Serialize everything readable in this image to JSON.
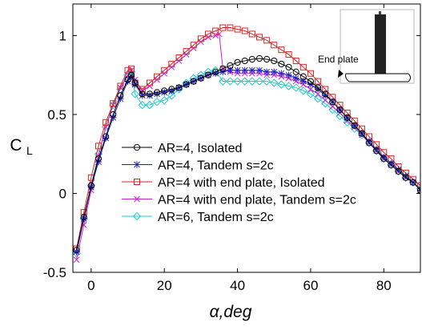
{
  "chart_data": {
    "type": "line",
    "xlabel": "α,deg",
    "ylabel": "C",
    "ylabel_subscript": "L",
    "xlim": [
      -5,
      90
    ],
    "ylim": [
      -0.5,
      1.2
    ],
    "xticks": [
      0,
      20,
      40,
      60,
      80
    ],
    "yticks": [
      -0.5,
      0,
      0.5,
      1
    ],
    "xtick_labels": [
      "0",
      "20",
      "40",
      "60",
      "80"
    ],
    "ytick_labels": [
      "-0.5",
      "0",
      "0.5",
      "1"
    ],
    "grid": false,
    "legend_position": "lower-left",
    "inset_label": "End plate",
    "series": [
      {
        "name": "AR=4, Isolated",
        "color": "#000000",
        "marker": "circle",
        "x": [
          -4,
          -2,
          0,
          2,
          4,
          6,
          8,
          10,
          11,
          12,
          14,
          16,
          18,
          20,
          22,
          24,
          26,
          28,
          30,
          32,
          34,
          36,
          38,
          40,
          42,
          44,
          46,
          48,
          50,
          52,
          54,
          56,
          58,
          60,
          62,
          64,
          66,
          68,
          70,
          72,
          74,
          76,
          78,
          80,
          82,
          84,
          86,
          88,
          90
        ],
        "y": [
          -0.36,
          -0.15,
          0.05,
          0.22,
          0.36,
          0.5,
          0.62,
          0.72,
          0.75,
          0.7,
          0.63,
          0.63,
          0.64,
          0.65,
          0.66,
          0.67,
          0.69,
          0.71,
          0.73,
          0.75,
          0.77,
          0.79,
          0.81,
          0.83,
          0.84,
          0.85,
          0.855,
          0.85,
          0.84,
          0.82,
          0.8,
          0.77,
          0.74,
          0.71,
          0.67,
          0.63,
          0.58,
          0.53,
          0.48,
          0.43,
          0.38,
          0.32,
          0.27,
          0.22,
          0.18,
          0.14,
          0.1,
          0.07,
          0.02
        ]
      },
      {
        "name": "AR=4, Tandem s=2c",
        "color": "#2222cc",
        "marker": "star",
        "x": [
          -4,
          -2,
          0,
          2,
          4,
          6,
          8,
          10,
          11,
          12,
          14,
          16,
          18,
          20,
          22,
          24,
          26,
          28,
          30,
          32,
          34,
          36,
          38,
          40,
          42,
          44,
          46,
          48,
          50,
          52,
          54,
          56,
          58,
          60,
          62,
          64,
          66,
          68,
          70,
          72,
          74,
          76,
          78,
          80,
          82,
          84,
          86,
          88,
          90
        ],
        "y": [
          -0.37,
          -0.16,
          0.04,
          0.2,
          0.35,
          0.48,
          0.6,
          0.71,
          0.74,
          0.69,
          0.62,
          0.62,
          0.63,
          0.64,
          0.65,
          0.67,
          0.69,
          0.71,
          0.73,
          0.75,
          0.76,
          0.77,
          0.78,
          0.78,
          0.78,
          0.78,
          0.78,
          0.77,
          0.77,
          0.76,
          0.75,
          0.73,
          0.71,
          0.69,
          0.66,
          0.62,
          0.58,
          0.53,
          0.48,
          0.43,
          0.38,
          0.33,
          0.28,
          0.23,
          0.19,
          0.15,
          0.11,
          0.07,
          0.02
        ]
      },
      {
        "name": "AR=4 with end plate, Isolated",
        "color": "#dd2222",
        "marker": "square",
        "x": [
          -4,
          -2,
          0,
          2,
          4,
          6,
          8,
          10,
          11,
          12,
          14,
          16,
          18,
          20,
          22,
          24,
          26,
          28,
          30,
          32,
          34,
          36,
          38,
          40,
          42,
          44,
          46,
          48,
          50,
          52,
          54,
          56,
          58,
          60,
          62,
          64,
          66,
          68,
          70,
          72,
          74,
          76,
          78,
          80,
          82,
          84,
          86,
          88,
          90
        ],
        "y": [
          -0.35,
          -0.12,
          0.1,
          0.3,
          0.45,
          0.57,
          0.68,
          0.78,
          0.79,
          0.7,
          0.66,
          0.7,
          0.74,
          0.78,
          0.82,
          0.86,
          0.9,
          0.94,
          0.98,
          1.01,
          1.03,
          1.05,
          1.05,
          1.04,
          1.03,
          1.01,
          0.99,
          0.97,
          0.94,
          0.91,
          0.88,
          0.84,
          0.8,
          0.76,
          0.71,
          0.66,
          0.61,
          0.56,
          0.51,
          0.46,
          0.41,
          0.36,
          0.31,
          0.26,
          0.22,
          0.17,
          0.13,
          0.09,
          0.05
        ]
      },
      {
        "name": "AR=4 with end plate, Tandem s=2c",
        "color": "#cc22cc",
        "marker": "x",
        "x": [
          -4,
          -2,
          0,
          2,
          4,
          6,
          8,
          10,
          11,
          12,
          14,
          16,
          18,
          20,
          22,
          24,
          26,
          28,
          30,
          32,
          34,
          35,
          36,
          38,
          40,
          42,
          44,
          46,
          48,
          50,
          52,
          54,
          56,
          58,
          60,
          62,
          64,
          66,
          68,
          70,
          72,
          74,
          76,
          78,
          80,
          82,
          84,
          86,
          88,
          90
        ],
        "y": [
          -0.42,
          -0.2,
          0.02,
          0.24,
          0.42,
          0.56,
          0.67,
          0.75,
          0.78,
          0.72,
          0.65,
          0.68,
          0.72,
          0.76,
          0.8,
          0.84,
          0.88,
          0.92,
          0.96,
          0.99,
          1.0,
          1.01,
          0.79,
          0.77,
          0.76,
          0.76,
          0.76,
          0.76,
          0.75,
          0.75,
          0.74,
          0.73,
          0.71,
          0.69,
          0.66,
          0.63,
          0.59,
          0.55,
          0.51,
          0.46,
          0.42,
          0.37,
          0.32,
          0.27,
          0.22,
          0.18,
          0.14,
          0.1,
          0.07,
          0.03
        ]
      },
      {
        "name": "AR=6, Tandem s=2c",
        "color": "#22cccc",
        "marker": "diamond",
        "x": [
          -4,
          -2,
          0,
          2,
          4,
          6,
          8,
          10,
          11,
          12,
          14,
          16,
          18,
          20,
          22,
          24,
          26,
          28,
          30,
          32,
          34,
          36,
          38,
          40,
          42,
          44,
          46,
          48,
          50,
          52,
          54,
          56,
          58,
          60,
          62,
          64,
          66,
          68,
          70,
          72,
          74,
          76,
          78,
          80,
          82,
          84,
          86,
          88,
          90
        ],
        "y": [
          -0.38,
          -0.16,
          0.05,
          0.25,
          0.42,
          0.56,
          0.66,
          0.75,
          0.77,
          0.63,
          0.56,
          0.56,
          0.58,
          0.59,
          0.62,
          0.66,
          0.7,
          0.73,
          0.75,
          0.77,
          0.78,
          0.71,
          0.71,
          0.71,
          0.71,
          0.71,
          0.71,
          0.71,
          0.7,
          0.69,
          0.68,
          0.67,
          0.65,
          0.63,
          0.6,
          0.57,
          0.53,
          0.49,
          0.45,
          0.41,
          0.37,
          0.32,
          0.27,
          0.22,
          0.18,
          0.14,
          0.1,
          0.07,
          0.03
        ]
      }
    ]
  }
}
